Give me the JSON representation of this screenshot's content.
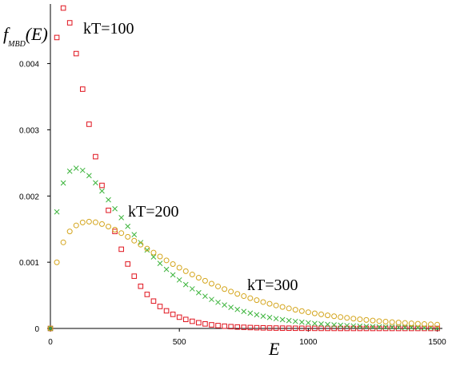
{
  "chart_data": {
    "type": "scatter",
    "ylabel": [
      "f",
      "MBD",
      "(E)"
    ],
    "xlabel": "E",
    "xlim": [
      0,
      1520
    ],
    "ylim": [
      0,
      0.0049
    ],
    "xticks": [
      0,
      500,
      1000,
      1500
    ],
    "yticks": [
      0,
      0.001,
      0.002,
      0.003,
      0.004
    ],
    "x": [
      0,
      25,
      50,
      75,
      100,
      125,
      150,
      175,
      200,
      225,
      250,
      275,
      300,
      325,
      350,
      375,
      400,
      425,
      450,
      475,
      500,
      525,
      550,
      575,
      600,
      625,
      650,
      675,
      700,
      725,
      750,
      775,
      800,
      825,
      850,
      875,
      900,
      925,
      950,
      975,
      1000,
      1025,
      1050,
      1075,
      1100,
      1125,
      1150,
      1175,
      1200,
      1225,
      1250,
      1275,
      1300,
      1325,
      1350,
      1375,
      1400,
      1425,
      1450,
      1475,
      1500
    ],
    "series": [
      {
        "name": "kT=100",
        "color": "#e0141e",
        "marker": "square",
        "values": [
          0,
          0.004394,
          0.004839,
          0.004616,
          0.004151,
          0.003614,
          0.003084,
          0.002594,
          0.00216,
          0.001784,
          0.001465,
          0.001196,
          0.000973,
          0.000789,
          0.000637,
          0.000514,
          0.000413,
          0.000332,
          0.000266,
          0.000213,
          0.00017,
          0.000136,
          0.000108,
          8.61e-05,
          6.85e-05,
          5.45e-05,
          4.33e-05,
          3.43e-05,
          2.72e-05,
          2.16e-05,
          1.71e-05,
          1.35e-05,
          1.07e-05,
          8.5e-06,
          6.7e-06,
          5.3e-06,
          4.2e-06,
          3.3e-06,
          2.6e-06,
          2.1e-06,
          1.6e-06,
          1.3e-06,
          1e-06,
          8e-07,
          6e-07,
          5e-07,
          4e-07,
          3e-07,
          2e-07,
          2e-07,
          1e-07,
          1e-07,
          1e-07,
          1e-07,
          0,
          0,
          0,
          0,
          0,
          0,
          0
        ]
      },
      {
        "name": "kT=200",
        "color": "#3cb43c",
        "marker": "cross",
        "values": [
          0,
          0.0017603,
          0.002197,
          0.0023746,
          0.0024197,
          0.0023873,
          0.0023079,
          0.0022,
          0.0020755,
          0.0019427,
          0.0018072,
          0.0016727,
          0.0015418,
          0.0014162,
          0.0012969,
          0.0011847,
          0.0010798,
          0.0009823,
          0.000892,
          0.0008087,
          0.0007323,
          0.0006622,
          0.0005981,
          0.0005397,
          0.0004865,
          0.0004382,
          0.0003944,
          0.0003547,
          0.0003187,
          0.0002863,
          0.0002569,
          0.0002305,
          0.0002067,
          0.0001852,
          0.0001659,
          0.0001485,
          0.000133,
          0.000119,
          0.0001064,
          9.51e-05,
          8.5e-05,
          7.59e-05,
          6.78e-05,
          6.06e-05,
          5.41e-05,
          4.83e-05,
          4.31e-05,
          3.84e-05,
          3.43e-05,
          3.05e-05,
          2.72e-05,
          2.43e-05,
          2.16e-05,
          1.93e-05,
          1.72e-05,
          1.53e-05,
          1.36e-05,
          1.21e-05,
          1.08e-05,
          9.6e-06,
          8.5e-06
        ]
      },
      {
        "name": "kT=300",
        "color": "#d4a51c",
        "marker": "circle",
        "values": [
          0,
          0.000999,
          0.0012998,
          0.0014647,
          0.001556,
          0.0016005,
          0.0016131,
          0.0016031,
          0.0015768,
          0.0015387,
          0.0014922,
          0.0014399,
          0.0013837,
          0.0013251,
          0.0012651,
          0.0012048,
          0.0011449,
          0.0010858,
          0.0010279,
          0.0009716,
          0.0009172,
          0.0008646,
          0.0008142,
          0.0007659,
          0.0007199,
          0.000676,
          0.0006343,
          0.0005947,
          0.0005572,
          0.0005217,
          0.0004882,
          0.0004566,
          0.0004268,
          0.0003988,
          0.0003724,
          0.0003476,
          0.0003244,
          0.0003025,
          0.0002821,
          0.0002629,
          0.000245,
          0.0002282,
          0.0002125,
          0.0001978,
          0.0001841,
          0.0001713,
          0.0001593,
          0.0001482,
          0.0001378,
          0.0001281,
          0.000119,
          0.0001106,
          0.0001028,
          9.54e-05,
          8.86e-05,
          8.23e-05,
          7.64e-05,
          7.09e-05,
          6.58e-05,
          6.11e-05,
          5.67e-05
        ]
      }
    ]
  }
}
